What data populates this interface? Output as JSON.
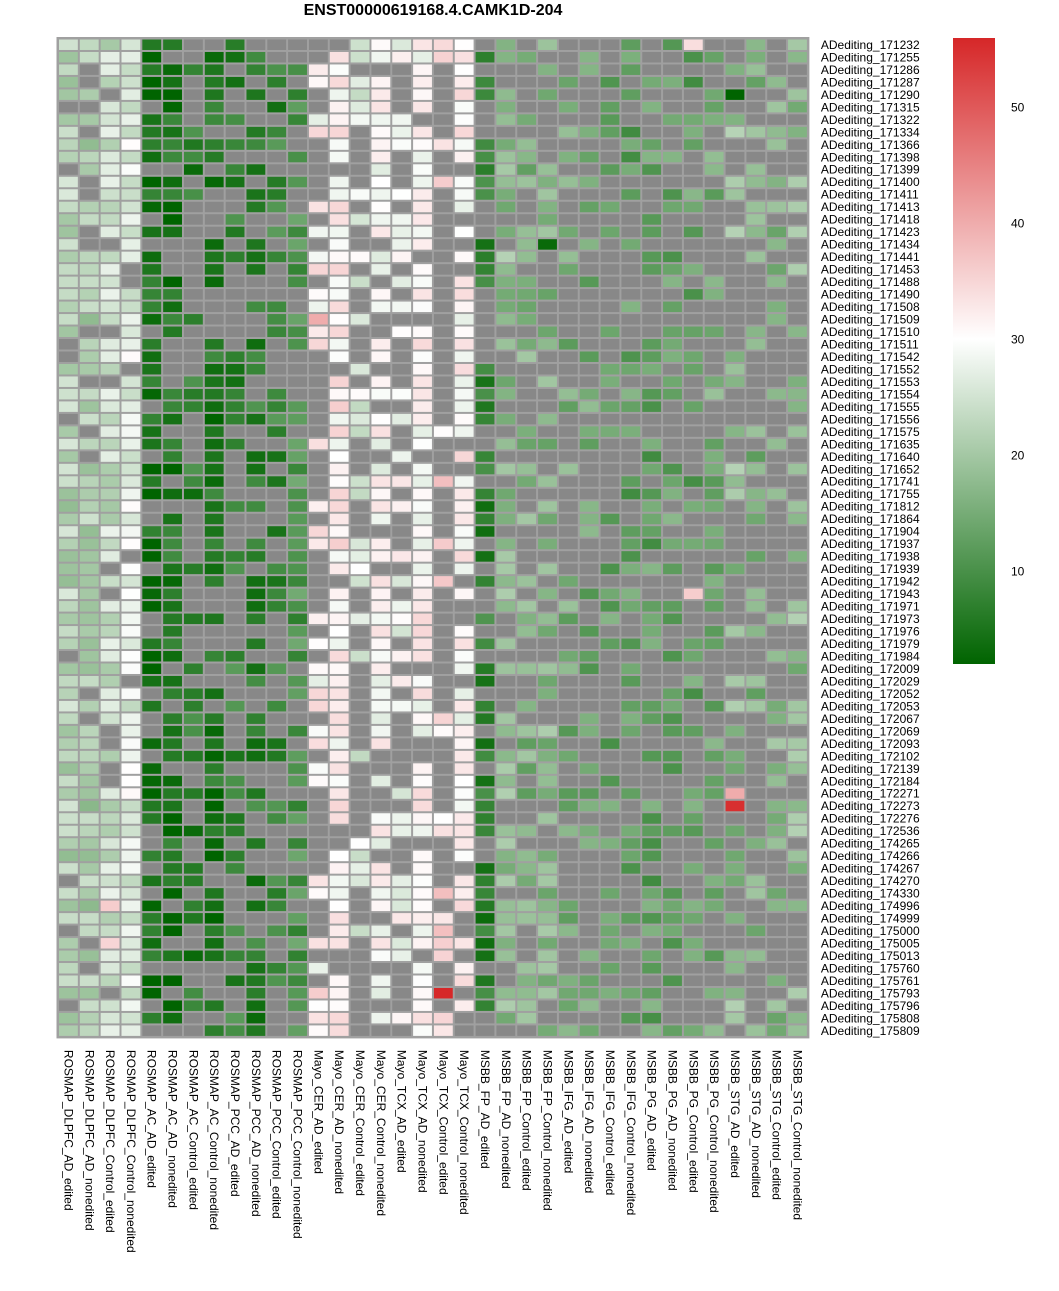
{
  "chart_data": {
    "type": "heatmap",
    "title": "ENST00000619168.4.CAMK1D-204",
    "columns": [
      "ROSMAP_DLPFC_AD_edited",
      "ROSMAP_DLPFC_AD_nonedited",
      "ROSMAP_DLPFC_Control_edited",
      "ROSMAP_DLPFC_Control_nonedited",
      "ROSMAP_AC_AD_edited",
      "ROSMAP_AC_AD_nonedited",
      "ROSMAP_AC_Control_edited",
      "ROSMAP_AC_Control_nonedited",
      "ROSMAP_PCC_AD_edited",
      "ROSMAP_PCC_AD_nonedited",
      "ROSMAP_PCC_Control_edited",
      "ROSMAP_PCC_Control_nonedited",
      "Mayo_CER_AD_edited",
      "Mayo_CER_AD_nonedited",
      "Mayo_CER_Control_edited",
      "Mayo_CER_Control_nonedited",
      "Mayo_TCX_AD_edited",
      "Mayo_TCX_AD_nonedited",
      "Mayo_TCX_Control_edited",
      "Mayo_TCX_Control_nonedited",
      "MSBB_FP_AD_edited",
      "MSBB_FP_AD_nonedited",
      "MSBB_FP_Control_edited",
      "MSBB_FP_Control_nonedited",
      "MSBB_IFG_AD_edited",
      "MSBB_IFG_AD_nonedited",
      "MSBB_IFG_Control_edited",
      "MSBB_IFG_Control_nonedited",
      "MSBB_PG_AD_edited",
      "MSBB_PG_AD_nonedited",
      "MSBB_PG_Control_edited",
      "MSBB_PG_Control_nonedited",
      "MSBB_STG_AD_edited",
      "MSBB_STG_AD_nonedited",
      "MSBB_STG_Control_edited",
      "MSBB_STG_Control_nonedited"
    ],
    "rows": [
      "ADediting_171232",
      "ADediting_171255",
      "ADediting_171286",
      "ADediting_171287",
      "ADediting_171290",
      "ADediting_171315",
      "ADediting_171322",
      "ADediting_171334",
      "ADediting_171366",
      "ADediting_171398",
      "ADediting_171399",
      "ADediting_171400",
      "ADediting_171411",
      "ADediting_171413",
      "ADediting_171418",
      "ADediting_171423",
      "ADediting_171434",
      "ADediting_171441",
      "ADediting_171453",
      "ADediting_171488",
      "ADediting_171490",
      "ADediting_171508",
      "ADediting_171509",
      "ADediting_171510",
      "ADediting_171511",
      "ADediting_171542",
      "ADediting_171552",
      "ADediting_171553",
      "ADediting_171554",
      "ADediting_171555",
      "ADediting_171556",
      "ADediting_171575",
      "ADediting_171635",
      "ADediting_171640",
      "ADediting_171652",
      "ADediting_171741",
      "ADediting_171755",
      "ADediting_171812",
      "ADediting_171864",
      "ADediting_171904",
      "ADediting_171937",
      "ADediting_171938",
      "ADediting_171939",
      "ADediting_171942",
      "ADediting_171943",
      "ADediting_171971",
      "ADediting_171973",
      "ADediting_171976",
      "ADediting_171979",
      "ADediting_171984",
      "ADediting_172009",
      "ADediting_172029",
      "ADediting_172052",
      "ADediting_172053",
      "ADediting_172067",
      "ADediting_172069",
      "ADediting_172093",
      "ADediting_172102",
      "ADediting_172139",
      "ADediting_172184",
      "ADediting_172271",
      "ADediting_172273",
      "ADediting_172276",
      "ADediting_172536",
      "ADediting_174265",
      "ADediting_174266",
      "ADediting_174267",
      "ADediting_174270",
      "ADediting_174330",
      "ADediting_174996",
      "ADediting_174999",
      "ADediting_175000",
      "ADediting_175005",
      "ADediting_175013",
      "ADediting_175760",
      "ADediting_175761",
      "ADediting_175793",
      "ADediting_175796",
      "ADediting_175808",
      "ADediting_175809"
    ],
    "column_base_values": [
      22,
      21,
      24,
      27,
      4,
      5,
      7,
      5,
      8,
      7,
      8,
      11,
      31,
      32,
      27,
      30,
      29,
      31,
      34,
      31,
      7,
      18,
      16,
      17,
      15,
      14,
      13,
      13,
      13,
      14,
      13,
      15,
      18,
      16,
      17,
      18
    ],
    "column_missing_rate": [
      0.1,
      0.15,
      0.15,
      0.05,
      0.25,
      0.3,
      0.6,
      0.4,
      0.55,
      0.4,
      0.5,
      0.3,
      0.6,
      0.1,
      0.7,
      0.2,
      0.6,
      0.1,
      0.7,
      0.2,
      0.35,
      0.35,
      0.5,
      0.45,
      0.6,
      0.6,
      0.65,
      0.6,
      0.45,
      0.5,
      0.6,
      0.5,
      0.6,
      0.55,
      0.6,
      0.55
    ],
    "highlights": [
      {
        "row": "ADediting_171509",
        "column": "Mayo_CER_AD_edited",
        "value": 40
      },
      {
        "row": "ADediting_171232",
        "column": "MSBB_PG_Control_edited",
        "value": 34
      },
      {
        "row": "ADediting_171943",
        "column": "MSBB_PG_Control_edited",
        "value": 36
      },
      {
        "row": "ADediting_172271",
        "column": "MSBB_STG_AD_edited",
        "value": 40
      },
      {
        "row": "ADediting_172273",
        "column": "MSBB_STG_AD_edited",
        "value": 55
      },
      {
        "row": "ADediting_175793",
        "column": "Mayo_TCX_Control_edited",
        "value": 56
      },
      {
        "row": "ADediting_175793",
        "column": "Mayo_CER_AD_edited",
        "value": 36
      },
      {
        "row": "ADediting_175808",
        "column": "Mayo_TCX_Control_edited",
        "value": 35
      },
      {
        "row": "ADediting_174996",
        "column": "ROSMAP_DLPFC_Control_edited",
        "value": 36
      },
      {
        "row": "ADediting_175005",
        "column": "ROSMAP_DLPFC_Control_edited",
        "value": 35
      },
      {
        "row": "ADediting_171290",
        "column": "MSBB_STG_AD_edited",
        "value": 2
      },
      {
        "row": "ADediting_171434",
        "column": "MSBB_FP_Control_nonedited",
        "value": 3
      }
    ],
    "colorbar": {
      "min": 2,
      "max": 56,
      "ticks": [
        10,
        20,
        30,
        40,
        50
      ],
      "colors": [
        "#006400",
        "#ffffff",
        "#d62728"
      ],
      "missing_color": "#888888"
    }
  }
}
